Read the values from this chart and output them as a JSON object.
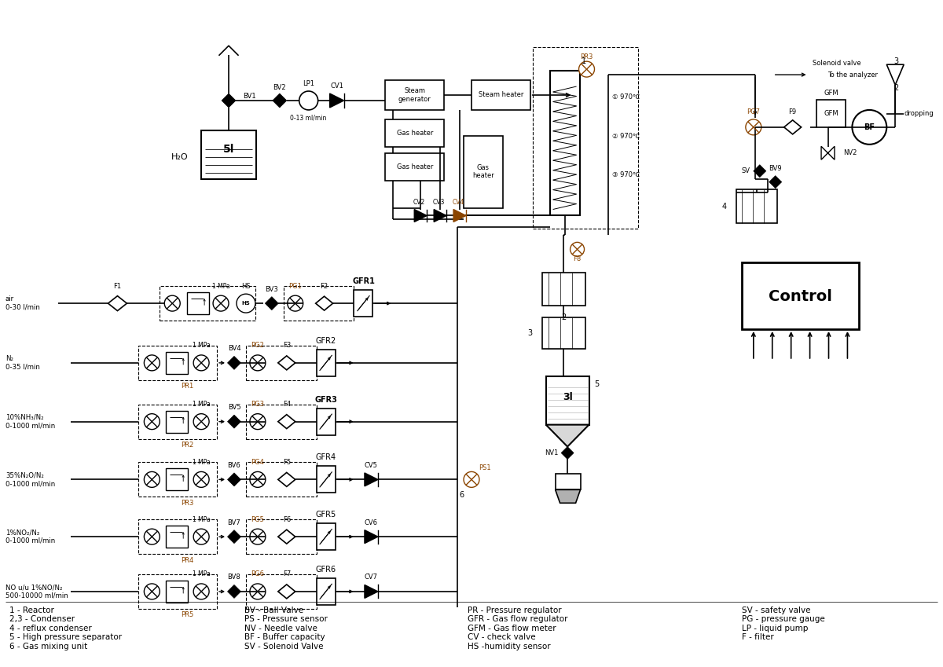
{
  "background_color": "#ffffff",
  "line_color": "#000000",
  "orange_color": "#8B4500",
  "legend_col1": [
    "1 - Reactor",
    "2,3 - Condenser",
    "4 - reflux condenser",
    "5 - High pressure separator",
    "6 - Gas mixing unit"
  ],
  "legend_col2": [
    "BV - Ball Valve",
    "PS - Pressure sensor",
    "NV - Needle valve",
    "BF - Buffer capacity",
    "SV - Solenoid Valve"
  ],
  "legend_col3": [
    "PR - Pressure regulator",
    "GFR - Gas flow regulator",
    "GFM - Gas flow meter",
    "CV - check valve",
    "HS -humidity sensor"
  ],
  "legend_col4": [
    "SV - safety valve",
    "PG - pressure gauge",
    "LP - liquid pump",
    "F - filter"
  ],
  "gas_labels": [
    "air\n0-30 l/min",
    "N₂\n0-35 l/min",
    "10%NH₃/N₂\n0-1000 ml/min",
    "35%N₂O/N₂\n0-1000 ml/min",
    "1%NO₂/N₂\n0-1000 ml/min",
    "NO u/u 1%NO/N₂\n500-10000 ml/min"
  ],
  "pr_labels": [
    "",
    "PR1",
    "PR2",
    "PR3",
    "PR4",
    "PR5"
  ],
  "pg_labels": [
    "PG1",
    "PG2",
    "PG3",
    "PG4",
    "PG5",
    "PG6"
  ],
  "gfr_labels": [
    "GFR1",
    "GFR2",
    "GFR3",
    "GFR4",
    "GFR5",
    "GFR6"
  ],
  "bv_labels": [
    "BV3",
    "BV4",
    "BV5",
    "BV6",
    "BV7",
    "BV8"
  ],
  "f_labels": [
    "F2",
    "F3",
    "F4",
    "F5",
    "F6",
    "F7"
  ],
  "cv_exit": [
    "",
    "",
    "",
    "CV5",
    "CV6",
    "CV7"
  ],
  "gas_y": [
    4.63,
    3.87,
    3.12,
    2.38,
    1.65,
    0.95
  ],
  "temp_labels": [
    "① 970℃",
    "② 970℃",
    "③ 970℃"
  ]
}
